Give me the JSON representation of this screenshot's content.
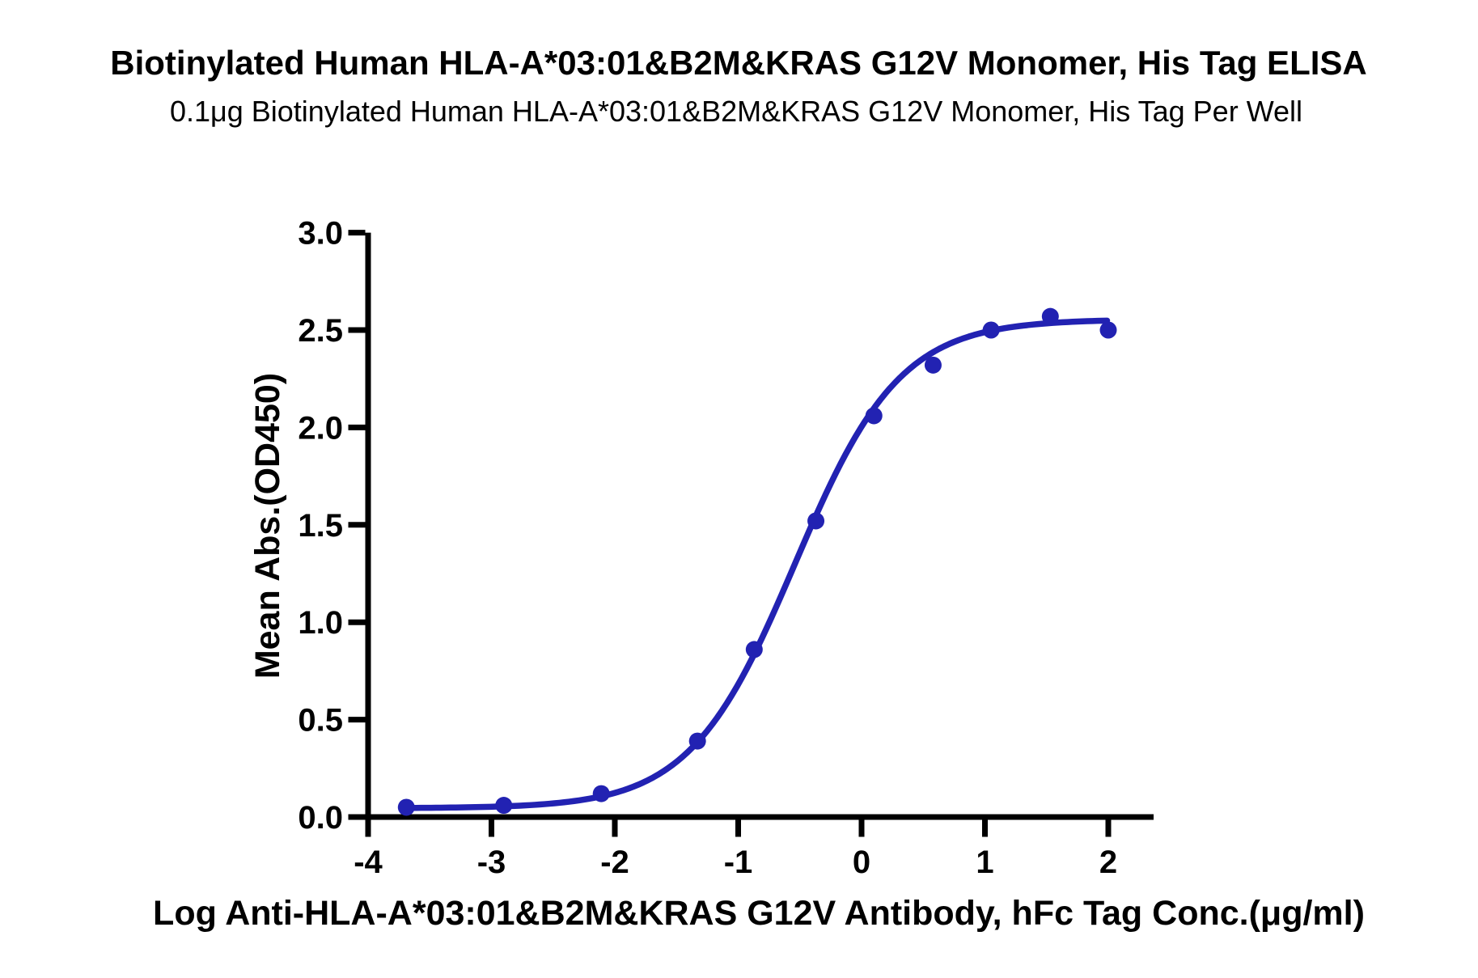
{
  "chart_data": {
    "type": "scatter",
    "title": "Biotinylated Human HLA-A*03:01&B2M&KRAS G12V Monomer, His Tag ELISA",
    "subtitle": "0.1μg Biotinylated Human HLA-A*03:01&B2M&KRAS G12V Monomer, His Tag Per Well",
    "xlabel": "Log Anti-HLA-A*03:01&B2M&KRAS G12V Antibody, hFc Tag Conc.(μg/ml)",
    "ylabel": "Mean Abs.(OD450)",
    "x_ticks": {
      "values": [
        -4,
        -3,
        -2,
        -1,
        0,
        1,
        2
      ],
      "labels": [
        "-4",
        "-3",
        "-2",
        "-1",
        "0",
        "1",
        "2"
      ]
    },
    "y_ticks": {
      "values": [
        0,
        0.5,
        1,
        1.5,
        2,
        2.5,
        3
      ],
      "labels": [
        "0.0",
        "0.5",
        "1.0",
        "1.5",
        "2.0",
        "2.5",
        "3.0"
      ]
    },
    "xlim": [
      -4,
      2.37
    ],
    "ylim": [
      0,
      3
    ],
    "grid": false,
    "legend": null,
    "series": [
      {
        "marker": "circle",
        "color": "#2222b2",
        "points": [
          {
            "x": -3.69,
            "y": 0.05
          },
          {
            "x": -2.9,
            "y": 0.06
          },
          {
            "x": -2.11,
            "y": 0.12
          },
          {
            "x": -1.33,
            "y": 0.39
          },
          {
            "x": -0.87,
            "y": 0.86
          },
          {
            "x": -0.37,
            "y": 1.52
          },
          {
            "x": 0.1,
            "y": 2.06
          },
          {
            "x": 0.58,
            "y": 2.32
          },
          {
            "x": 1.05,
            "y": 2.5
          },
          {
            "x": 1.53,
            "y": 2.57
          },
          {
            "x": 2.0,
            "y": 2.5
          }
        ]
      }
    ],
    "fit_curve": {
      "model": "4PL",
      "bottom": 0.045,
      "top": 2.555,
      "log_ec50": -0.54,
      "hill": 1.02,
      "x_start": -3.69,
      "x_end": 2.0
    },
    "colors": {
      "curve": "#2222b2",
      "axis": "#000000",
      "text": "#000000",
      "background": "#ffffff"
    }
  }
}
